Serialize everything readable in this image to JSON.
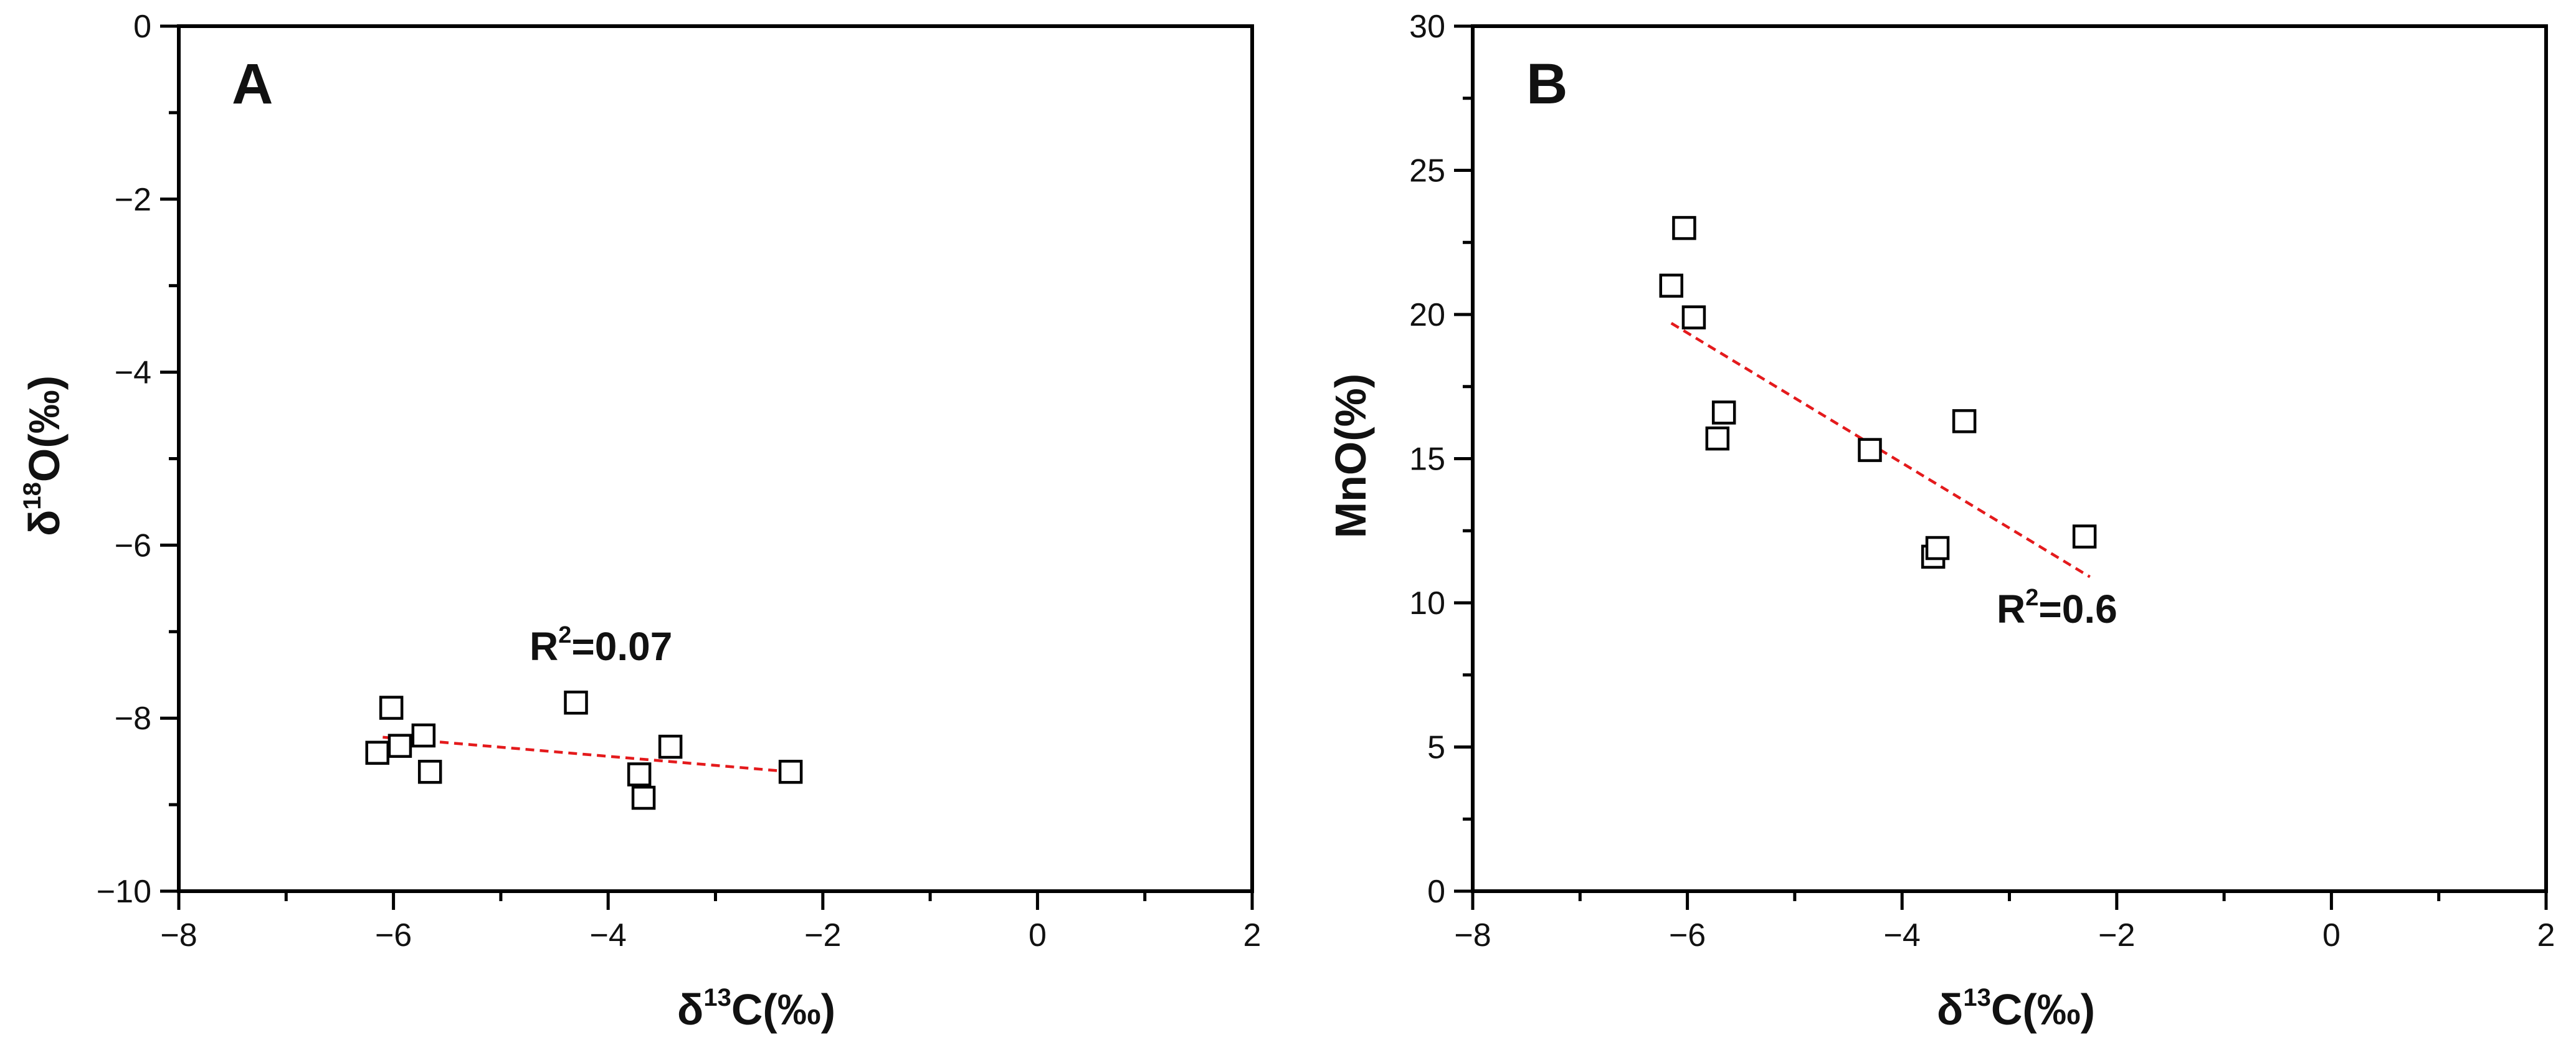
{
  "colors": {
    "frame": "#000000",
    "fit_line": "#e41a1c",
    "marker_fill": "#ffffff",
    "background": "#ffffff"
  },
  "chart_data": [
    {
      "type": "scatter",
      "panel": "A",
      "xlabel": {
        "base": "δ",
        "sup": "13",
        "rest": "C(‰)"
      },
      "ylabel": {
        "base": "δ",
        "sup": "18",
        "rest": "O(‰)"
      },
      "xlim": [
        -8,
        2
      ],
      "ylim": [
        -10,
        0
      ],
      "xticks": [
        -8,
        -6,
        -4,
        -2,
        0,
        2
      ],
      "yticks": [
        0,
        -2,
        -4,
        -6,
        -8,
        -10
      ],
      "xtick_labels": [
        "−8",
        "−6",
        "−4",
        "−2",
        "0",
        "2"
      ],
      "ytick_labels": [
        "0",
        "−2",
        "−4",
        "−6",
        "−8",
        "−10"
      ],
      "series": [
        {
          "marker": "open-square",
          "points": [
            {
              "x": -6.15,
              "y": -8.4
            },
            {
              "x": -6.02,
              "y": -7.88
            },
            {
              "x": -5.94,
              "y": -8.32
            },
            {
              "x": -5.72,
              "y": -8.2
            },
            {
              "x": -5.66,
              "y": -8.62
            },
            {
              "x": -4.3,
              "y": -7.82
            },
            {
              "x": -3.71,
              "y": -8.65
            },
            {
              "x": -3.67,
              "y": -8.92
            },
            {
              "x": -3.42,
              "y": -8.33
            },
            {
              "x": -2.3,
              "y": -8.62
            }
          ]
        }
      ],
      "fit_line": {
        "x1": -6.1,
        "y1": -8.22,
        "x2": -2.2,
        "y2": -8.63,
        "style": "dashed"
      },
      "annotation": {
        "base": "R",
        "sup": "2",
        "rest": "=0.07"
      }
    },
    {
      "type": "scatter",
      "panel": "B",
      "xlabel": {
        "base": "δ",
        "sup": "13",
        "rest": "C(‰)"
      },
      "ylabel": {
        "base": "MnO(%)",
        "sup": "",
        "rest": ""
      },
      "xlim": [
        -8,
        2
      ],
      "ylim": [
        0,
        30
      ],
      "xticks": [
        -8,
        -6,
        -4,
        -2,
        0,
        2
      ],
      "yticks": [
        0,
        5,
        10,
        15,
        20,
        25,
        30
      ],
      "xtick_labels": [
        "−8",
        "−6",
        "−4",
        "−2",
        "0",
        "2"
      ],
      "ytick_labels": [
        "0",
        "5",
        "10",
        "15",
        "20",
        "25",
        "30"
      ],
      "series": [
        {
          "marker": "open-square",
          "points": [
            {
              "x": -6.15,
              "y": 21.0
            },
            {
              "x": -6.03,
              "y": 23.0
            },
            {
              "x": -5.94,
              "y": 19.9
            },
            {
              "x": -5.72,
              "y": 15.7
            },
            {
              "x": -5.66,
              "y": 16.6
            },
            {
              "x": -4.3,
              "y": 15.3
            },
            {
              "x": -3.71,
              "y": 11.6
            },
            {
              "x": -3.67,
              "y": 11.9
            },
            {
              "x": -3.42,
              "y": 16.3
            },
            {
              "x": -2.3,
              "y": 12.3
            }
          ]
        }
      ],
      "fit_line": {
        "x1": -6.15,
        "y1": 19.7,
        "x2": -2.25,
        "y2": 10.9,
        "style": "dashed"
      },
      "annotation": {
        "base": "R",
        "sup": "2",
        "rest": "=0.6"
      }
    }
  ]
}
